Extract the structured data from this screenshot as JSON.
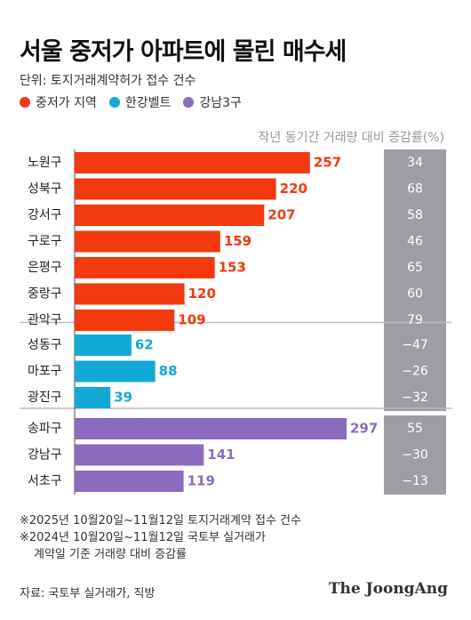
{
  "header": {
    "title": "서울 중저가 아파트에 몰린 매수세",
    "unit": "단위: 토지거래계약허가 접수 건수",
    "change_header": "작년 동기간 거래량 대비 증감률(%)"
  },
  "legend": [
    {
      "label": "중저가 지역",
      "color": "#f23a0e"
    },
    {
      "label": "한강벨트",
      "color": "#12a9d6"
    },
    {
      "label": "강남3구",
      "color": "#8b6bbd"
    }
  ],
  "chart_data": {
    "type": "bar",
    "orientation": "horizontal",
    "categories": [
      "노원구",
      "성북구",
      "강서구",
      "구로구",
      "은평구",
      "중랑구",
      "관악구",
      "성동구",
      "마포구",
      "광진구",
      "송파구",
      "강남구",
      "서초구"
    ],
    "values": [
      257,
      220,
      207,
      159,
      153,
      120,
      109,
      62,
      88,
      39,
      297,
      141,
      119
    ],
    "groups": [
      "중저가 지역",
      "중저가 지역",
      "중저가 지역",
      "중저가 지역",
      "중저가 지역",
      "중저가 지역",
      "중저가 지역",
      "한강벨트",
      "한강벨트",
      "한강벨트",
      "강남3구",
      "강남3구",
      "강남3구"
    ],
    "change_pct": [
      "34",
      "68",
      "58",
      "46",
      "65",
      "60",
      "79",
      "−47",
      "−26",
      "−32",
      "55",
      "−30",
      "−13"
    ],
    "xlim": [
      0,
      297
    ],
    "grid": false,
    "legend_position": "top-left",
    "colors": {
      "low_mid": "#f23a0e",
      "han_river": "#12a9d6",
      "gangnam": "#8b6bbd",
      "change_col_bg": "#9c9ea4"
    }
  },
  "notes": [
    "※2025년 10월20일~11월12일 토지거래계약 접수 건수",
    "※2024년 10월20일~11월12일 국토부 실거래가",
    "계약일 기준 거래량 대비 증감률"
  ],
  "source": "자료: 국토부 실거래가, 직방",
  "logo": "The JoongAng"
}
